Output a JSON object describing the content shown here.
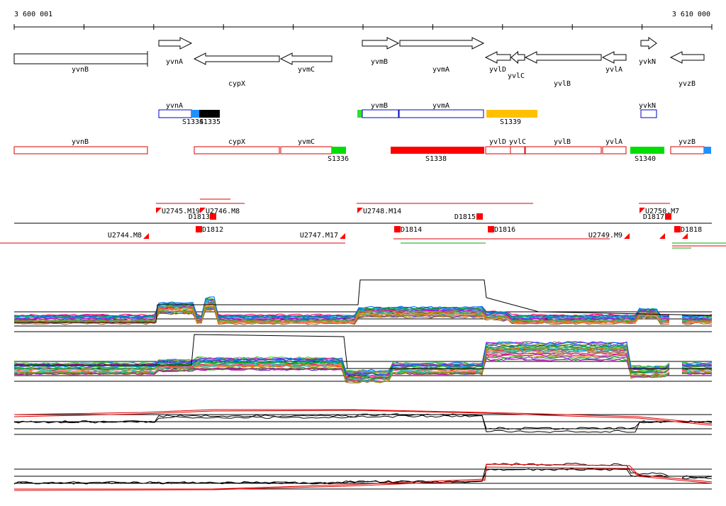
{
  "axis": {
    "start": "3 600 001",
    "end": "3 610 000"
  },
  "genes": [
    "yvnB",
    "yvnA",
    "cypX",
    "yvmC",
    "yvmB",
    "yvmA",
    "yvlD",
    "yvlC",
    "yvlB",
    "yvlA",
    "yvkN",
    "yvzB"
  ],
  "segments_upper": [
    "yvnA",
    "S1334",
    "S1335",
    "yvmB",
    "yvmA",
    "S1339",
    "yvkN"
  ],
  "segments_lower": [
    "yvnB",
    "cypX",
    "yvmC",
    "S1336",
    "S1338",
    "yvlD",
    "yvlC",
    "yvlB",
    "yvlA",
    "S1340",
    "yvzB"
  ],
  "markers": [
    "U2745.M19",
    "U2746.M8",
    "D1813",
    "D1812",
    "U2744.M8",
    "U2747.M17",
    "U2748.M14",
    "D1815",
    "D1814",
    "D1816",
    "U2749.M9",
    "U2750.M7",
    "D1817",
    "D1818"
  ]
}
